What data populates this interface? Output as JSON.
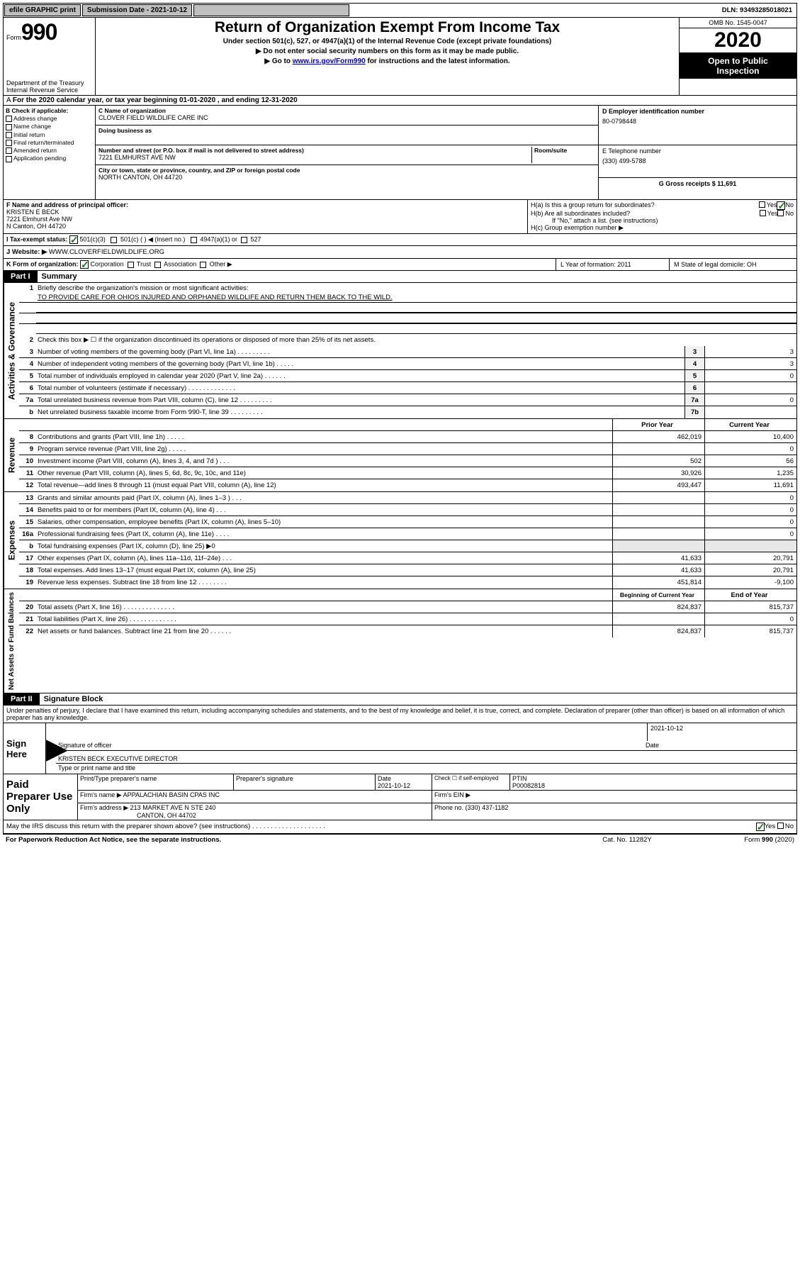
{
  "top": {
    "efile": "efile GRAPHIC print",
    "submission_label": "Submission Date - 2021-10-12",
    "dln": "DLN: 93493285018021"
  },
  "header": {
    "form_label": "Form",
    "form_num": "990",
    "dept": "Department of the Treasury\nInternal Revenue Service",
    "title": "Return of Organization Exempt From Income Tax",
    "subtitle": "Under section 501(c), 527, or 4947(a)(1) of the Internal Revenue Code (except private foundations)",
    "instr1": "▶ Do not enter social security numbers on this form as it may be made public.",
    "instr2_pre": "▶ Go to ",
    "instr2_link": "www.irs.gov/Form990",
    "instr2_post": " for instructions and the latest information.",
    "omb": "OMB No. 1545-0047",
    "year": "2020",
    "open1": "Open to Public",
    "open2": "Inspection"
  },
  "tax_year": "For the 2020 calendar year, or tax year beginning 01-01-2020    , and ending 12-31-2020",
  "section_b": {
    "label": "B Check if applicable:",
    "items": [
      "Address change",
      "Name change",
      "Initial return",
      "Final return/terminated",
      "Amended return",
      "Application pending"
    ]
  },
  "section_c": {
    "name_label": "C Name of organization",
    "name": "CLOVER FIELD WILDLIFE CARE INC",
    "dba_label": "Doing business as",
    "addr_label": "Number and street (or P.O. box if mail is not delivered to street address)",
    "room_label": "Room/suite",
    "addr": "7221 ELMHURST AVE NW",
    "city_label": "City or town, state or province, country, and ZIP or foreign postal code",
    "city": "NORTH CANTON, OH  44720"
  },
  "section_d": {
    "label": "D Employer identification number",
    "ein": "80-0798448"
  },
  "section_e": {
    "label": "E Telephone number",
    "phone": "(330) 499-5788"
  },
  "section_g": {
    "label": "G Gross receipts $ 11,691"
  },
  "section_f": {
    "label": "F  Name and address of principal officer:",
    "name": "KRISTEN E BECK",
    "addr1": "7221 Elmhurst Ave NW",
    "addr2": "N Canton, OH  44720"
  },
  "section_h": {
    "ha": "H(a)  Is this a group return for subordinates?",
    "hb": "H(b)  Are all subordinates included?",
    "hb_note": "If \"No,\" attach a list. (see instructions)",
    "hc": "H(c)  Group exemption number ▶"
  },
  "yes": "Yes",
  "no": "No",
  "section_i": {
    "label": "I     Tax-exempt status:",
    "opt1": "501(c)(3)",
    "opt2": "501(c) (   ) ◀ (insert no.)",
    "opt3": "4947(a)(1) or",
    "opt4": "527"
  },
  "section_j": {
    "label": "J    Website: ▶",
    "site": "  WWW.CLOVERFIELDWILDLIFE.ORG"
  },
  "section_k": {
    "label": "K Form of organization:",
    "corp": "Corporation",
    "trust": "Trust",
    "assoc": "Association",
    "other": "Other ▶"
  },
  "section_l": {
    "label": "L Year of formation: 2011"
  },
  "section_m": {
    "label": "M State of legal domicile: OH"
  },
  "part1": {
    "hdr": "Part I",
    "title": "Summary",
    "l1": "Briefly describe the organization's mission or most significant activities:",
    "l1_text": "TO PROVIDE CARE FOR OHIOS INJURED AND ORPHANED WILDLIFE AND RETURN THEM BACK TO THE WILD.",
    "l2": "Check this box ▶ ☐  if the organization discontinued its operations or disposed of more than 25% of its net assets.",
    "sideA": "Activities & Governance",
    "sideR": "Revenue",
    "sideE": "Expenses",
    "sideN": "Net Assets or Fund Balances",
    "prior": "Prior Year",
    "current": "Current Year",
    "begin": "Beginning of Current Year",
    "end": "End of Year",
    "lines": [
      {
        "n": "3",
        "t": "Number of voting members of the governing body (Part VI, line 1a)  .    .    .    .    .    .    .    .    .",
        "b": "3",
        "v": "3"
      },
      {
        "n": "4",
        "t": "Number of independent voting members of the governing body (Part VI, line 1b)  .    .    .    .    .",
        "b": "4",
        "v": "3"
      },
      {
        "n": "5",
        "t": "Total number of individuals employed in calendar year 2020 (Part V, line 2a)  .    .    .    .    .    .",
        "b": "5",
        "v": "0"
      },
      {
        "n": "6",
        "t": "Total number of volunteers (estimate if necessary)  .    .    .    .    .    .    .    .    .    .    .    .    .",
        "b": "6",
        "v": ""
      },
      {
        "n": "7a",
        "t": "Total unrelated business revenue from Part VIII, column (C), line 12  .    .    .    .    .    .    .    .    .",
        "b": "7a",
        "v": "0"
      },
      {
        "n": "b",
        "t": "Net unrelated business taxable income from Form 990-T, line 39   .    .    .    .    .    .    .    .    .",
        "b": "7b",
        "v": ""
      }
    ],
    "rev_lines": [
      {
        "n": "8",
        "t": "Contributions and grants (Part VIII, line 1h)   .    .    .    .    .",
        "p": "462,019",
        "c": "10,400"
      },
      {
        "n": "9",
        "t": "Program service revenue (Part VIII, line 2g)  .    .    .    .    .",
        "p": "",
        "c": "0"
      },
      {
        "n": "10",
        "t": "Investment income (Part VIII, column (A), lines 3, 4, and 7d )   .    .    .",
        "p": "502",
        "c": "56"
      },
      {
        "n": "11",
        "t": "Other revenue (Part VIII, column (A), lines 5, 6d, 8c, 9c, 10c, and 11e)",
        "p": "30,926",
        "c": "1,235"
      },
      {
        "n": "12",
        "t": "Total revenue—add lines 8 through 11 (must equal Part VIII, column (A), line 12)",
        "p": "493,447",
        "c": "11,691"
      }
    ],
    "exp_lines": [
      {
        "n": "13",
        "t": "Grants and similar amounts paid (Part IX, column (A), lines 1–3 )   .    .    .",
        "p": "",
        "c": "0"
      },
      {
        "n": "14",
        "t": "Benefits paid to or for members (Part IX, column (A), line 4)  .    .    .",
        "p": "",
        "c": "0"
      },
      {
        "n": "15",
        "t": "Salaries, other compensation, employee benefits (Part IX, column (A), lines 5–10)",
        "p": "",
        "c": "0"
      },
      {
        "n": "16a",
        "t": "Professional fundraising fees (Part IX, column (A), line 11e)  .    .    .    .",
        "p": "",
        "c": "0"
      },
      {
        "n": "b",
        "t": "Total fundraising expenses (Part IX, column (D), line 25) ▶0",
        "p": "-",
        "c": "-"
      },
      {
        "n": "17",
        "t": "Other expenses (Part IX, column (A), lines 11a–11d, 11f–24e)  .    .    .",
        "p": "41,633",
        "c": "20,791"
      },
      {
        "n": "18",
        "t": "Total expenses. Add lines 13–17 (must equal Part IX, column (A), line 25)",
        "p": "41,633",
        "c": "20,791"
      },
      {
        "n": "19",
        "t": "Revenue less expenses. Subtract line 18 from line 12  .    .    .    .    .    .    .    .",
        "p": "451,814",
        "c": "-9,100"
      }
    ],
    "net_lines": [
      {
        "n": "20",
        "t": "Total assets (Part X, line 16)  .    .    .    .    .    .    .    .    .    .    .    .    .    .",
        "p": "824,837",
        "c": "815,737"
      },
      {
        "n": "21",
        "t": "Total liabilities (Part X, line 26)  .    .    .    .    .    .    .    .    .    .    .    .    .",
        "p": "",
        "c": "0"
      },
      {
        "n": "22",
        "t": "Net assets or fund balances. Subtract line 21 from line 20  .    .    .    .    .    .",
        "p": "824,837",
        "c": "815,737"
      }
    ]
  },
  "part2": {
    "hdr": "Part II",
    "title": "Signature Block",
    "penalty": "Under penalties of perjury, I declare that I have examined this return, including accompanying schedules and statements, and to the best of my knowledge and belief, it is true, correct, and complete. Declaration of preparer (other than officer) is based on all information of which preparer has any knowledge.",
    "sign_here": "Sign Here",
    "sig_officer": "Signature of officer",
    "date": "Date",
    "sig_date": "2021-10-12",
    "name_title": "KRISTEN BECK EXECUTIVE DIRECTOR",
    "type_name": "Type or print name and title",
    "paid": "Paid Preparer Use Only",
    "prep_name_label": "Print/Type preparer's name",
    "prep_sig_label": "Preparer's signature",
    "prep_date_label": "Date",
    "prep_date": "2021-10-12",
    "check_if": "Check ☐  if self-employed",
    "ptin_label": "PTIN",
    "ptin": "P00082818",
    "firm_name_label": "Firm's name    ▶",
    "firm_name": "APPALACHIAN BASIN CPAS INC",
    "firm_ein": "Firm's EIN ▶",
    "firm_addr_label": "Firm's address ▶",
    "firm_addr": "213 MARKET AVE N STE 240",
    "firm_city": "CANTON, OH  44702",
    "firm_phone_label": "Phone no.",
    "firm_phone": "(330) 437-1182",
    "discuss": "May the IRS discuss this return with the preparer shown above? (see instructions)   .    .    .    .    .    .    .    .    .    .    .    .    .    .    .    .    .    .    .    ."
  },
  "footer": {
    "paperwork": "For Paperwork Reduction Act Notice, see the separate instructions.",
    "cat": "Cat. No. 11282Y",
    "form": "Form 990 (2020)"
  }
}
